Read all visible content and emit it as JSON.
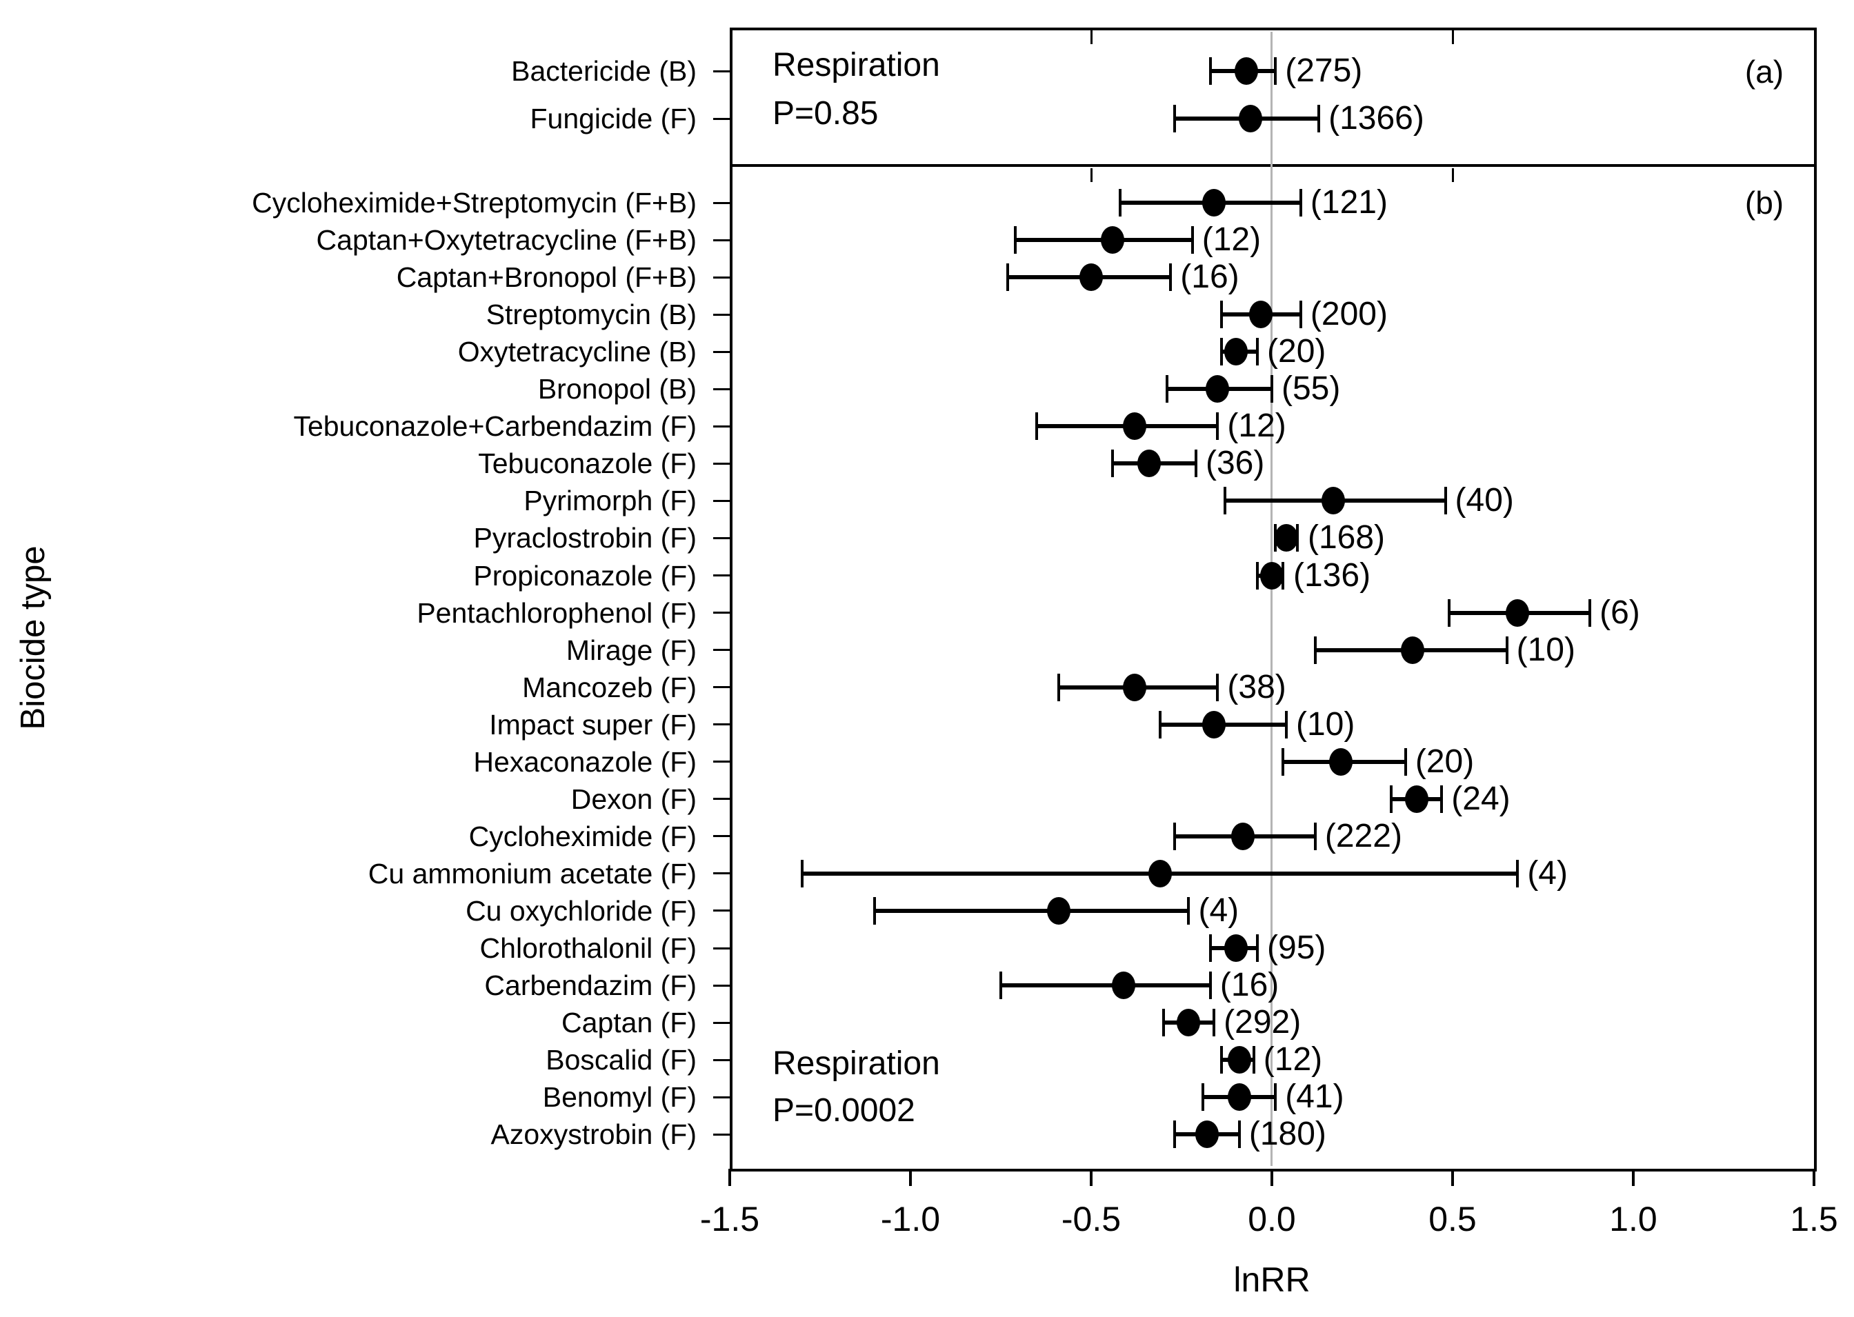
{
  "chart_data": {
    "type": "scatter",
    "subtype": "forest-plot",
    "title": "",
    "xlabel": "lnRR",
    "ylabel": "Biocide type",
    "xlim": [
      -1.5,
      1.5
    ],
    "x_tick_values": [
      -1.5,
      -1.0,
      -0.5,
      0.0,
      0.5,
      1.0,
      1.5
    ],
    "x_tick_labels": [
      "-1.5",
      "-1.0",
      "-0.5",
      "0.0",
      "0.5",
      "1.0",
      "1.5"
    ],
    "inner_tick_values": [
      -0.5,
      0.5
    ],
    "zero_reference_line": 0.0,
    "grid": "off",
    "legend": "none",
    "point_color": "#000000",
    "reference_line_color": "#b4b4b4",
    "panels": [
      {
        "tag": "(a)",
        "annotation": [
          "Respiration",
          "P=0.85"
        ],
        "rows": [
          {
            "label": "Bactericide (B)",
            "value": -0.07,
            "ci_low": -0.17,
            "ci_high": 0.01,
            "n": 275,
            "count_label": "(275)"
          },
          {
            "label": "Fungicide (F)",
            "value": -0.06,
            "ci_low": -0.27,
            "ci_high": 0.13,
            "n": 1366,
            "count_label": "(1366)"
          }
        ]
      },
      {
        "tag": "(b)",
        "annotation": [
          "Respiration",
          "P=0.0002"
        ],
        "rows": [
          {
            "label": "Cycloheximide+Streptomycin (F+B)",
            "value": -0.16,
            "ci_low": -0.42,
            "ci_high": 0.08,
            "n": 121,
            "count_label": "(121)"
          },
          {
            "label": "Captan+Oxytetracycline (F+B)",
            "value": -0.44,
            "ci_low": -0.71,
            "ci_high": -0.22,
            "n": 12,
            "count_label": "(12)"
          },
          {
            "label": "Captan+Bronopol (F+B)",
            "value": -0.5,
            "ci_low": -0.73,
            "ci_high": -0.28,
            "n": 16,
            "count_label": "(16)"
          },
          {
            "label": "Streptomycin (B)",
            "value": -0.03,
            "ci_low": -0.14,
            "ci_high": 0.08,
            "n": 200,
            "count_label": "(200)"
          },
          {
            "label": "Oxytetracycline (B)",
            "value": -0.1,
            "ci_low": -0.14,
            "ci_high": -0.04,
            "n": 20,
            "count_label": "(20)"
          },
          {
            "label": "Bronopol (B)",
            "value": -0.15,
            "ci_low": -0.29,
            "ci_high": 0.0,
            "n": 55,
            "count_label": "(55)"
          },
          {
            "label": "Tebuconazole+Carbendazim (F)",
            "value": -0.38,
            "ci_low": -0.65,
            "ci_high": -0.15,
            "n": 12,
            "count_label": "(12)"
          },
          {
            "label": "Tebuconazole (F)",
            "value": -0.34,
            "ci_low": -0.44,
            "ci_high": -0.21,
            "n": 36,
            "count_label": "(36)"
          },
          {
            "label": "Pyrimorph (F)",
            "value": 0.17,
            "ci_low": -0.13,
            "ci_high": 0.48,
            "n": 40,
            "count_label": "(40)"
          },
          {
            "label": "Pyraclostrobin (F)",
            "value": 0.04,
            "ci_low": 0.01,
            "ci_high": 0.07,
            "n": 168,
            "count_label": "(168)"
          },
          {
            "label": "Propiconazole (F)",
            "value": 0.0,
            "ci_low": -0.04,
            "ci_high": 0.03,
            "n": 136,
            "count_label": "(136)"
          },
          {
            "label": "Pentachlorophenol (F)",
            "value": 0.68,
            "ci_low": 0.49,
            "ci_high": 0.88,
            "n": 6,
            "count_label": "(6)"
          },
          {
            "label": "Mirage (F)",
            "value": 0.39,
            "ci_low": 0.12,
            "ci_high": 0.65,
            "n": 10,
            "count_label": "(10)"
          },
          {
            "label": "Mancozeb (F)",
            "value": -0.38,
            "ci_low": -0.59,
            "ci_high": -0.15,
            "n": 38,
            "count_label": "(38)"
          },
          {
            "label": "Impact super (F)",
            "value": -0.16,
            "ci_low": -0.31,
            "ci_high": 0.04,
            "n": 10,
            "count_label": "(10)"
          },
          {
            "label": "Hexaconazole (F)",
            "value": 0.19,
            "ci_low": 0.03,
            "ci_high": 0.37,
            "n": 20,
            "count_label": "(20)"
          },
          {
            "label": "Dexon (F)",
            "value": 0.4,
            "ci_low": 0.33,
            "ci_high": 0.47,
            "n": 24,
            "count_label": "(24)"
          },
          {
            "label": "Cycloheximide (F)",
            "value": -0.08,
            "ci_low": -0.27,
            "ci_high": 0.12,
            "n": 222,
            "count_label": "(222)"
          },
          {
            "label": "Cu ammonium acetate (F)",
            "value": -0.31,
            "ci_low": -1.3,
            "ci_high": 0.68,
            "n": 4,
            "count_label": "(4)"
          },
          {
            "label": "Cu oxychloride (F)",
            "value": -0.59,
            "ci_low": -1.1,
            "ci_high": -0.23,
            "n": 4,
            "count_label": "(4)"
          },
          {
            "label": "Chlorothalonil (F)",
            "value": -0.1,
            "ci_low": -0.17,
            "ci_high": -0.04,
            "n": 95,
            "count_label": "(95)"
          },
          {
            "label": "Carbendazim (F)",
            "value": -0.41,
            "ci_low": -0.75,
            "ci_high": -0.17,
            "n": 16,
            "count_label": "(16)"
          },
          {
            "label": "Captan (F)",
            "value": -0.23,
            "ci_low": -0.3,
            "ci_high": -0.16,
            "n": 292,
            "count_label": "(292)"
          },
          {
            "label": "Boscalid (F)",
            "value": -0.09,
            "ci_low": -0.14,
            "ci_high": -0.05,
            "n": 12,
            "count_label": "(12)"
          },
          {
            "label": "Benomyl (F)",
            "value": -0.09,
            "ci_low": -0.19,
            "ci_high": 0.01,
            "n": 41,
            "count_label": "(41)"
          },
          {
            "label": "Azoxystrobin (F)",
            "value": -0.18,
            "ci_low": -0.27,
            "ci_high": -0.09,
            "n": 180,
            "count_label": "(180)"
          }
        ]
      }
    ]
  }
}
